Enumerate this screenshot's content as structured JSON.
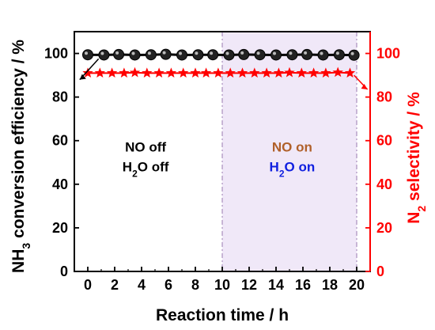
{
  "chart_data": {
    "type": "line",
    "xlabel": "Reaction time / h",
    "ylabel_left": {
      "main": "NH",
      "sub": "3",
      "rest": " conversion efficiency / %"
    },
    "ylabel_right": {
      "main": "N",
      "sub": "2",
      "rest": " selectivity / %"
    },
    "xlim": [
      -1,
      21
    ],
    "ylim_left": [
      0,
      110
    ],
    "ylim_right": [
      0,
      110
    ],
    "x_ticks": [
      0,
      2,
      4,
      6,
      8,
      10,
      12,
      14,
      16,
      18,
      20
    ],
    "y_ticks": [
      0,
      20,
      40,
      60,
      80,
      100
    ],
    "shaded_region": {
      "x_start": 10,
      "x_end": 20,
      "color": "#f0e8f8"
    },
    "series": [
      {
        "axis": "left",
        "marker": "circle",
        "color": "#000000",
        "x": [
          0,
          1.2,
          2.3,
          3.5,
          4.7,
          5.8,
          7.0,
          8.2,
          9.3,
          10.5,
          11.6,
          12.8,
          14.0,
          15.2,
          16.3,
          17.5,
          18.7,
          19.8
        ],
        "y": [
          99.4,
          99.3,
          99.5,
          99.3,
          99.4,
          99.6,
          99.3,
          99.4,
          99.4,
          99.3,
          99.5,
          99.4,
          99.3,
          99.4,
          99.5,
          99.3,
          99.4,
          99.2
        ]
      },
      {
        "axis": "right",
        "marker": "star",
        "color": "#ff0000",
        "x": [
          0,
          0.9,
          1.8,
          2.7,
          3.5,
          4.4,
          5.3,
          6.2,
          7.1,
          8.0,
          8.8,
          9.7,
          10.6,
          11.5,
          12.4,
          13.3,
          14.2,
          15.0,
          15.9,
          16.8,
          17.7,
          18.6,
          19.5
        ],
        "y": [
          91,
          91,
          91,
          91,
          91.2,
          91,
          91,
          91,
          91,
          91,
          91,
          91,
          91,
          91,
          91,
          91,
          91,
          91.2,
          91,
          91,
          91,
          91.3,
          91
        ]
      }
    ],
    "annotations": {
      "left_region": [
        {
          "parts": [
            {
              "t": "NO off"
            }
          ],
          "color": "#000000",
          "x": 4.3,
          "y": 55
        },
        {
          "parts": [
            {
              "t": "H"
            },
            {
              "t": "2",
              "sub": true
            },
            {
              "t": "O off"
            }
          ],
          "color": "#000000",
          "x": 4.3,
          "y": 46
        }
      ],
      "right_region": [
        {
          "parts": [
            {
              "t": "NO on"
            }
          ],
          "color": "#b0602a",
          "x": 15.2,
          "y": 55
        },
        {
          "parts": [
            {
              "t": "H"
            },
            {
              "t": "2",
              "sub": true
            },
            {
              "t": "O on"
            }
          ],
          "color": "#1020e0",
          "x": 15.2,
          "y": 46
        }
      ]
    },
    "left_axis_color": "#000000",
    "right_axis_color": "#ff0000",
    "grid": false,
    "legend": "none"
  }
}
